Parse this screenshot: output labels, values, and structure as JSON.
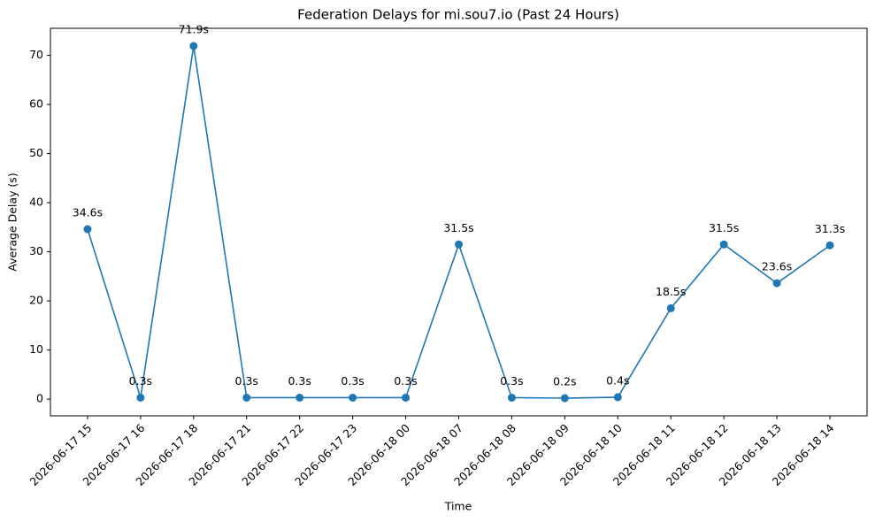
{
  "chart_data": {
    "type": "line",
    "title": "Federation Delays for mi.sou7.io (Past 24 Hours)",
    "x_label": "Time",
    "y_label": "Average Delay (s)",
    "categories": [
      "2026-06-17 15",
      "2026-06-17 16",
      "2026-06-17 18",
      "2026-06-17 21",
      "2026-06-17 22",
      "2026-06-17 23",
      "2026-06-18 00",
      "2026-06-18 07",
      "2026-06-18 08",
      "2026-06-18 09",
      "2026-06-18 10",
      "2026-06-18 11",
      "2026-06-18 12",
      "2026-06-18 13",
      "2026-06-18 14"
    ],
    "values": [
      34.6,
      0.3,
      71.9,
      0.3,
      0.3,
      0.3,
      0.3,
      31.5,
      0.3,
      0.2,
      0.4,
      18.5,
      31.5,
      23.6,
      31.3
    ],
    "value_labels": [
      "34.6s",
      "0.3s",
      "71.9s",
      "0.3s",
      "0.3s",
      "0.3s",
      "0.3s",
      "31.5s",
      "0.3s",
      "0.2s",
      "0.4s",
      "18.5s",
      "31.5s",
      "23.6s",
      "31.3s"
    ],
    "color": "#1f77b4",
    "ylim": [
      -3.4,
      75.5
    ],
    "yticks": [
      0,
      10,
      20,
      30,
      40,
      50,
      60,
      70
    ],
    "grid": false
  }
}
